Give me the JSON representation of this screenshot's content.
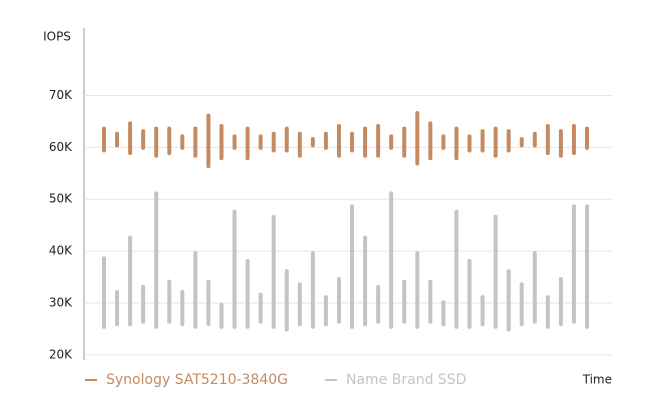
{
  "chart_data": {
    "type": "range-bar",
    "y_label": "IOPS",
    "x_label": "Time",
    "categories": [
      null,
      null,
      null,
      null,
      null,
      null,
      null,
      null,
      null,
      null,
      null,
      null,
      null,
      null,
      null,
      null,
      null,
      null,
      null,
      null,
      null,
      null,
      null,
      null,
      null,
      null,
      null,
      null,
      null,
      null,
      null,
      null,
      null,
      null,
      null,
      null,
      null,
      null
    ],
    "ylim": [
      19000,
      83000
    ],
    "yticks": [
      {
        "value": 20000,
        "label": "20K"
      },
      {
        "value": 30000,
        "label": "30K"
      },
      {
        "value": 40000,
        "label": "40K"
      },
      {
        "value": 50000,
        "label": "50K"
      },
      {
        "value": 60000,
        "label": "60K"
      },
      {
        "value": 70000,
        "label": "70K"
      }
    ],
    "grid": true,
    "series": [
      {
        "name": "Synology SAT5210-3840G",
        "color": "#c48b62",
        "low": [
          59000,
          60000,
          58500,
          59500,
          58000,
          58500,
          59500,
          58000,
          56000,
          57500,
          59500,
          57500,
          59500,
          59000,
          59000,
          58000,
          60000,
          59500,
          58000,
          59000,
          58000,
          58000,
          59500,
          58000,
          56500,
          57500,
          59500,
          57500,
          59000,
          59000,
          58000,
          59000,
          60000,
          60000,
          58500,
          58000,
          58500,
          59500
        ],
        "high": [
          64000,
          63000,
          65000,
          63500,
          64000,
          64000,
          62500,
          64000,
          66500,
          64500,
          62500,
          64000,
          62500,
          63000,
          64000,
          63000,
          62000,
          63000,
          64500,
          63000,
          64000,
          64500,
          62500,
          64000,
          67000,
          65000,
          62500,
          64000,
          62500,
          63500,
          64000,
          63500,
          62000,
          63000,
          64500,
          63500,
          64500,
          64000
        ]
      },
      {
        "name": "Name Brand SSD",
        "color": "#c4c4c4",
        "low": [
          25000,
          25500,
          25500,
          26000,
          25000,
          26000,
          25500,
          25000,
          25500,
          25000,
          25000,
          25000,
          26000,
          25000,
          24500,
          25500,
          25000,
          25500,
          26000,
          25000,
          25500,
          26000,
          25000,
          26000,
          25000,
          26000,
          25500,
          25000,
          25000,
          25500,
          25000,
          24500,
          25500,
          26000,
          25000,
          25500,
          26000,
          25000
        ],
        "high": [
          39000,
          32500,
          43000,
          33500,
          51500,
          34500,
          32500,
          40000,
          34500,
          30000,
          48000,
          38500,
          32000,
          47000,
          36500,
          34000,
          40000,
          31500,
          35000,
          49000,
          43000,
          33500,
          51500,
          34500,
          40000,
          34500,
          30500,
          48000,
          38500,
          31500,
          47000,
          36500,
          34000,
          40000,
          31500,
          35000,
          49000,
          49000
        ]
      }
    ]
  }
}
